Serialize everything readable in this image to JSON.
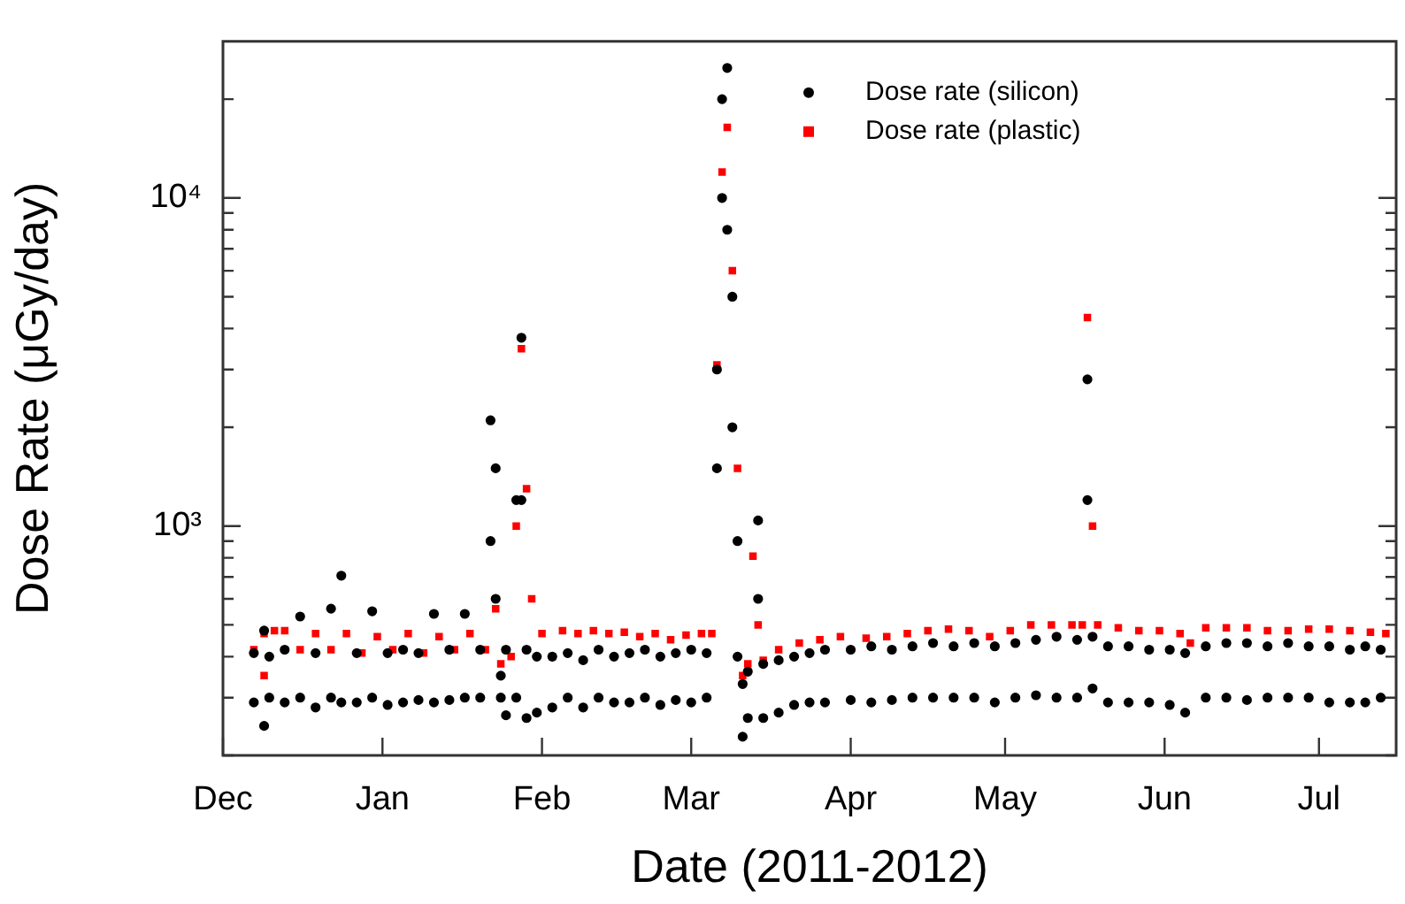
{
  "chart_data": {
    "type": "scatter",
    "xlabel": "Date (2011-2012)",
    "ylabel": "Dose Rate (μGy/day)",
    "xlim": [
      "2011-12-01",
      "2012-07-16"
    ],
    "xticks": [
      {
        "value": "2011-12-01",
        "label": "Dec"
      },
      {
        "value": "2012-01-01",
        "label": "Jan"
      },
      {
        "value": "2012-02-01",
        "label": "Feb"
      },
      {
        "value": "2012-03-01",
        "label": "Mar"
      },
      {
        "value": "2012-04-01",
        "label": "Apr"
      },
      {
        "value": "2012-05-01",
        "label": "May"
      },
      {
        "value": "2012-06-01",
        "label": "Jun"
      },
      {
        "value": "2012-07-01",
        "label": "Jul"
      }
    ],
    "ylim": [
      200,
      30000
    ],
    "log": "y",
    "yticks": [
      {
        "value": 200,
        "label": null
      },
      {
        "value": 300,
        "label": null
      },
      {
        "value": 400,
        "label": null
      },
      {
        "value": 500,
        "label": null
      },
      {
        "value": 600,
        "label": null
      },
      {
        "value": 700,
        "label": null
      },
      {
        "value": 800,
        "label": null
      },
      {
        "value": 900,
        "label": null
      },
      {
        "value": 1000,
        "label": "10³"
      },
      {
        "value": 2000,
        "label": null
      },
      {
        "value": 3000,
        "label": null
      },
      {
        "value": 4000,
        "label": null
      },
      {
        "value": 5000,
        "label": null
      },
      {
        "value": 6000,
        "label": null
      },
      {
        "value": 7000,
        "label": null
      },
      {
        "value": 8000,
        "label": null
      },
      {
        "value": 9000,
        "label": null
      },
      {
        "value": 10000,
        "label": "10⁴"
      },
      {
        "value": 20000,
        "label": null
      }
    ],
    "grid": false,
    "legend": "top right",
    "series": [
      {
        "name": "Dose rate (silicon)",
        "color": "#000000",
        "marker": "circle",
        "x": [
          "2011-12-07",
          "2011-12-07",
          "2011-12-09",
          "2011-12-09",
          "2011-12-10",
          "2011-12-10",
          "2011-12-13",
          "2011-12-13",
          "2011-12-16",
          "2011-12-16",
          "2011-12-19",
          "2011-12-19",
          "2011-12-22",
          "2011-12-22",
          "2011-12-24",
          "2011-12-24",
          "2011-12-27",
          "2011-12-27",
          "2011-12-30",
          "2011-12-30",
          "2012-01-02",
          "2012-01-02",
          "2012-01-05",
          "2012-01-05",
          "2012-01-08",
          "2012-01-08",
          "2012-01-11",
          "2012-01-11",
          "2012-01-14",
          "2012-01-14",
          "2012-01-17",
          "2012-01-17",
          "2012-01-20",
          "2012-01-20",
          "2012-01-22",
          "2012-01-22",
          "2012-01-23",
          "2012-01-23",
          "2012-01-24",
          "2012-01-24",
          "2012-01-25",
          "2012-01-25",
          "2012-01-27",
          "2012-01-27",
          "2012-01-28",
          "2012-01-28",
          "2012-01-29",
          "2012-01-29",
          "2012-01-31",
          "2012-01-31",
          "2012-02-03",
          "2012-02-03",
          "2012-02-06",
          "2012-02-06",
          "2012-02-09",
          "2012-02-09",
          "2012-02-12",
          "2012-02-12",
          "2012-02-15",
          "2012-02-15",
          "2012-02-18",
          "2012-02-18",
          "2012-02-21",
          "2012-02-21",
          "2012-02-24",
          "2012-02-24",
          "2012-02-27",
          "2012-02-27",
          "2012-03-01",
          "2012-03-01",
          "2012-03-04",
          "2012-03-04",
          "2012-03-06",
          "2012-03-06",
          "2012-03-07",
          "2012-03-07",
          "2012-03-08",
          "2012-03-08",
          "2012-03-09",
          "2012-03-09",
          "2012-03-10",
          "2012-03-10",
          "2012-03-11",
          "2012-03-11",
          "2012-03-12",
          "2012-03-12",
          "2012-03-14",
          "2012-03-14",
          "2012-03-15",
          "2012-03-15",
          "2012-03-18",
          "2012-03-18",
          "2012-03-21",
          "2012-03-21",
          "2012-03-24",
          "2012-03-24",
          "2012-03-27",
          "2012-03-27",
          "2012-04-01",
          "2012-04-01",
          "2012-04-05",
          "2012-04-05",
          "2012-04-09",
          "2012-04-09",
          "2012-04-13",
          "2012-04-13",
          "2012-04-17",
          "2012-04-17",
          "2012-04-21",
          "2012-04-21",
          "2012-04-25",
          "2012-04-25",
          "2012-04-29",
          "2012-04-29",
          "2012-05-03",
          "2012-05-03",
          "2012-05-07",
          "2012-05-07",
          "2012-05-11",
          "2012-05-11",
          "2012-05-15",
          "2012-05-15",
          "2012-05-17",
          "2012-05-17",
          "2012-05-18",
          "2012-05-18",
          "2012-05-21",
          "2012-05-21",
          "2012-05-25",
          "2012-05-25",
          "2012-05-29",
          "2012-05-29",
          "2012-06-02",
          "2012-06-02",
          "2012-06-05",
          "2012-06-05",
          "2012-06-09",
          "2012-06-09",
          "2012-06-13",
          "2012-06-13",
          "2012-06-17",
          "2012-06-17",
          "2012-06-21",
          "2012-06-21",
          "2012-06-25",
          "2012-06-25",
          "2012-06-29",
          "2012-06-29",
          "2012-07-03",
          "2012-07-03",
          "2012-07-07",
          "2012-07-07",
          "2012-07-10",
          "2012-07-10",
          "2012-07-13",
          "2012-07-13"
        ],
        "values": [
          410,
          290,
          246,
          480,
          400,
          300,
          420,
          290,
          530,
          300,
          410,
          280,
          560,
          300,
          706,
          290,
          410,
          290,
          550,
          300,
          410,
          285,
          420,
          290,
          410,
          295,
          540,
          290,
          420,
          295,
          540,
          300,
          420,
          300,
          900,
          2100,
          1500,
          600,
          350,
          300,
          265,
          420,
          300,
          1200,
          3750,
          1200,
          420,
          260,
          400,
          270,
          400,
          280,
          410,
          300,
          390,
          280,
          420,
          300,
          400,
          290,
          410,
          290,
          420,
          300,
          400,
          285,
          410,
          295,
          420,
          290,
          410,
          300,
          1500,
          3000,
          10000,
          20000,
          24900,
          8000,
          5000,
          2000,
          900,
          400,
          228,
          330,
          260,
          360,
          1040,
          600,
          380,
          260,
          390,
          270,
          400,
          285,
          410,
          290,
          420,
          290,
          420,
          295,
          430,
          290,
          420,
          295,
          430,
          300,
          440,
          300,
          430,
          300,
          440,
          300,
          430,
          290,
          440,
          300,
          450,
          305,
          460,
          300,
          450,
          300,
          2800,
          1200,
          460,
          320,
          430,
          290,
          430,
          290,
          420,
          290,
          420,
          285,
          410,
          270,
          430,
          300,
          440,
          300,
          440,
          295,
          430,
          300,
          440,
          300,
          430,
          300,
          430,
          290,
          420,
          290,
          430,
          290,
          420,
          300
        ]
      },
      {
        "name": "Dose rate (plastic)",
        "color": "#ff0000",
        "marker": "square",
        "x": [
          "2011-12-07",
          "2011-12-09",
          "2011-12-09",
          "2011-12-11",
          "2011-12-13",
          "2011-12-16",
          "2011-12-19",
          "2011-12-22",
          "2011-12-25",
          "2011-12-28",
          "2011-12-31",
          "2012-01-03",
          "2012-01-06",
          "2012-01-09",
          "2012-01-12",
          "2012-01-15",
          "2012-01-18",
          "2012-01-21",
          "2012-01-23",
          "2012-01-24",
          "2012-01-26",
          "2012-01-27",
          "2012-01-28",
          "2012-01-29",
          "2012-01-30",
          "2012-02-01",
          "2012-02-03",
          "2012-02-05",
          "2012-02-08",
          "2012-02-11",
          "2012-02-14",
          "2012-02-17",
          "2012-02-20",
          "2012-02-23",
          "2012-02-26",
          "2012-02-29",
          "2012-03-03",
          "2012-03-05",
          "2012-03-06",
          "2012-03-07",
          "2012-03-08",
          "2012-03-09",
          "2012-03-10",
          "2012-03-11",
          "2012-03-12",
          "2012-03-13",
          "2012-03-14",
          "2012-03-15",
          "2012-03-18",
          "2012-03-22",
          "2012-03-26",
          "2012-03-30",
          "2012-04-04",
          "2012-04-08",
          "2012-04-12",
          "2012-04-16",
          "2012-04-20",
          "2012-04-24",
          "2012-04-28",
          "2012-05-02",
          "2012-05-06",
          "2012-05-10",
          "2012-05-14",
          "2012-05-16",
          "2012-05-17",
          "2012-05-18",
          "2012-05-19",
          "2012-05-23",
          "2012-05-27",
          "2012-05-31",
          "2012-06-04",
          "2012-06-06",
          "2012-06-09",
          "2012-06-13",
          "2012-06-17",
          "2012-06-21",
          "2012-06-25",
          "2012-06-29",
          "2012-07-03",
          "2012-07-07",
          "2012-07-11",
          "2012-07-14"
        ],
        "values": [
          420,
          350,
          470,
          480,
          480,
          420,
          470,
          420,
          470,
          410,
          460,
          420,
          470,
          410,
          460,
          420,
          470,
          420,
          560,
          380,
          400,
          1000,
          3470,
          1300,
          600,
          470,
          400,
          480,
          470,
          480,
          470,
          475,
          460,
          470,
          450,
          465,
          470,
          470,
          3100,
          12000,
          16400,
          6000,
          1500,
          350,
          380,
          810,
          500,
          390,
          420,
          440,
          450,
          460,
          455,
          460,
          470,
          480,
          485,
          480,
          460,
          480,
          500,
          500,
          500,
          500,
          4320,
          1000,
          500,
          490,
          480,
          480,
          470,
          440,
          490,
          490,
          490,
          480,
          480,
          485,
          485,
          480,
          475,
          470
        ]
      }
    ]
  }
}
